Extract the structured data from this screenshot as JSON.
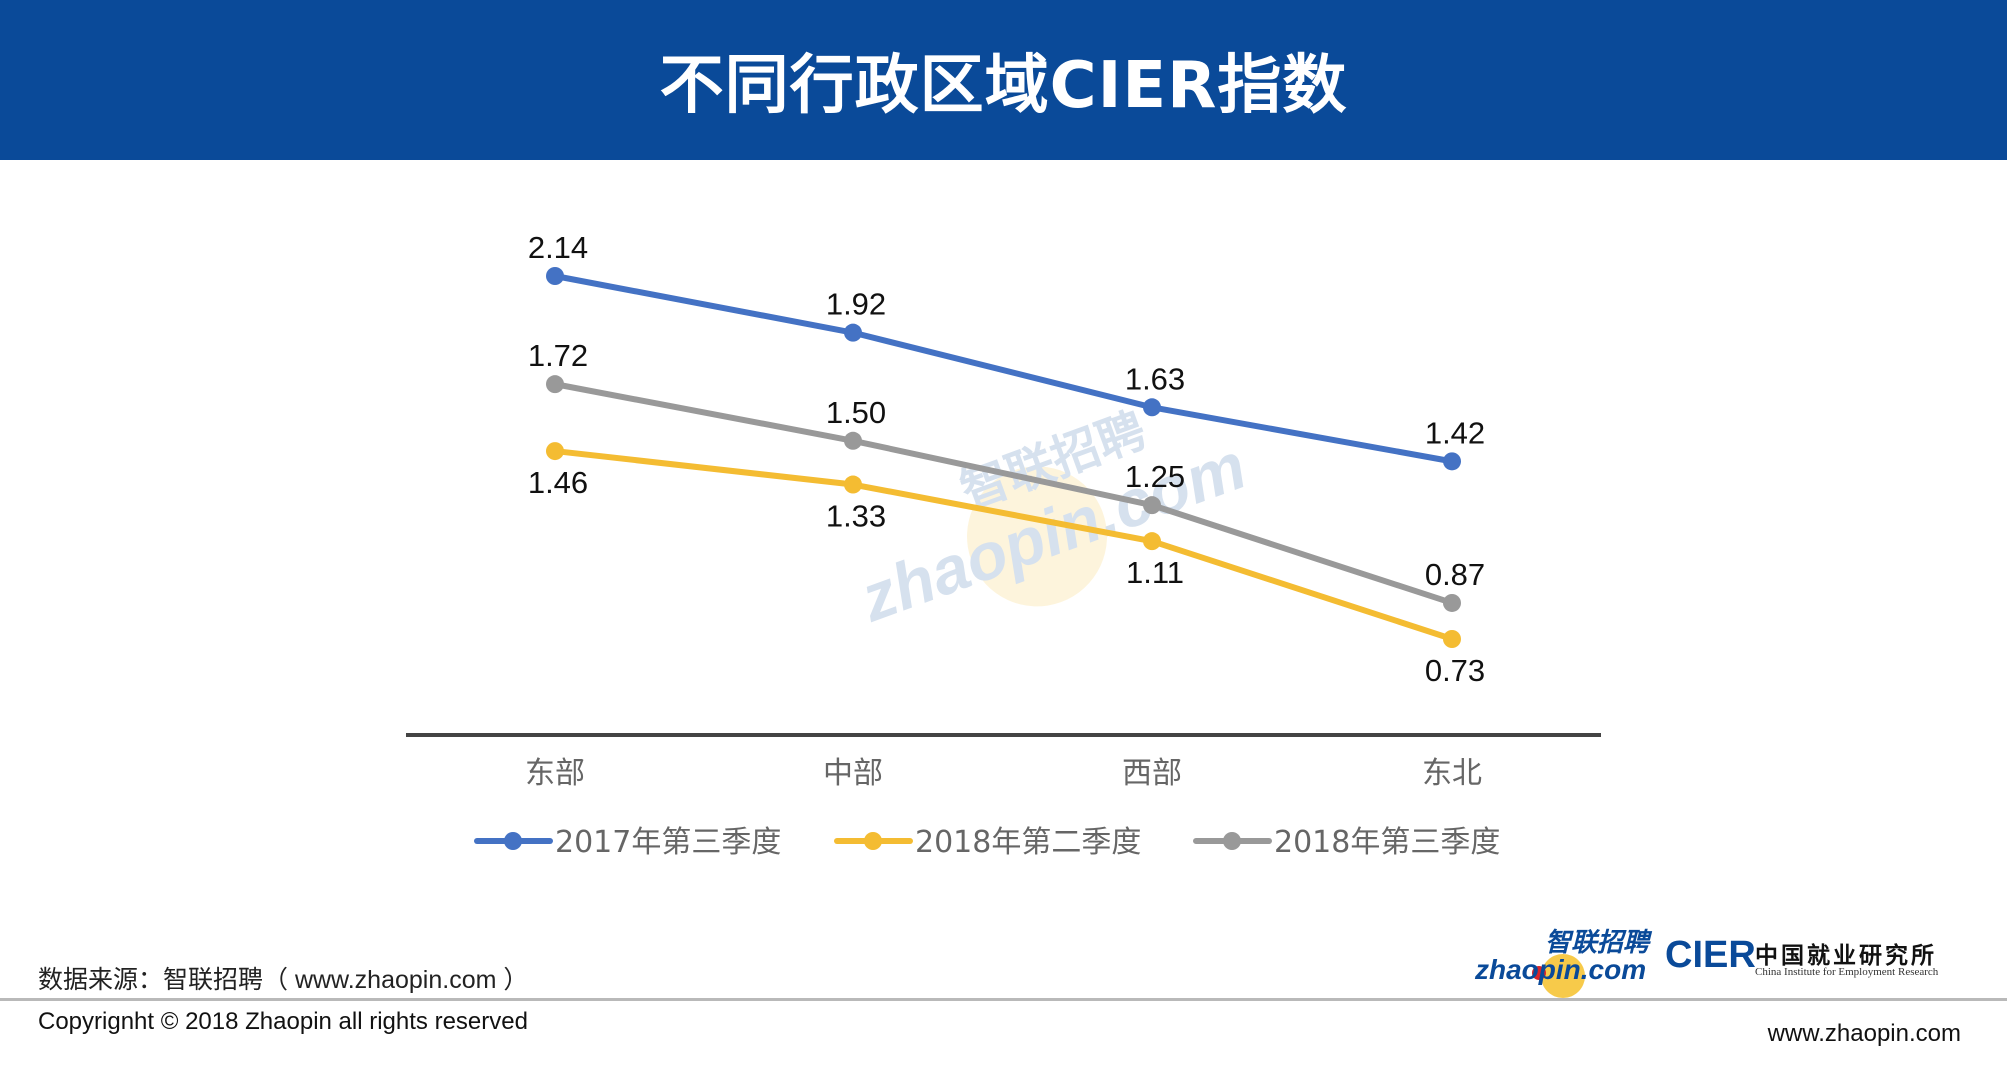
{
  "header": {
    "title": "不同行政区域CIER指数",
    "background": "#0a4a99"
  },
  "chart_data": {
    "type": "line",
    "title": "",
    "xlabel": "",
    "ylabel": "",
    "categories": [
      "东部",
      "中部",
      "西部",
      "东北"
    ],
    "ylim": [
      0.4,
      2.3
    ],
    "grid": false,
    "legend_position": "bottom",
    "series": [
      {
        "name": "2017年第三季度",
        "values": [
          2.14,
          1.92,
          1.63,
          1.42
        ],
        "labels": [
          "2.14",
          "1.92",
          "1.63",
          "1.42"
        ],
        "color": "#4472c4",
        "label_position": [
          "above",
          "above",
          "above",
          "above"
        ]
      },
      {
        "name": "2018年第二季度",
        "values": [
          1.46,
          1.33,
          1.11,
          0.73
        ],
        "labels": [
          "1.46",
          "1.33",
          "1.11",
          "0.73"
        ],
        "color": "#f4bc32",
        "label_position": [
          "below",
          "below",
          "below",
          "below"
        ]
      },
      {
        "name": "2018年第三季度",
        "values": [
          1.72,
          1.5,
          1.25,
          0.87
        ],
        "labels": [
          "1.72",
          "1.50",
          "1.25",
          "0.87"
        ],
        "color": "#999999",
        "label_position": [
          "above",
          "above",
          "above",
          "above"
        ]
      }
    ]
  },
  "footer": {
    "source": "数据来源：智联招聘（ www.zhaopin.com ）",
    "copyright": "Copyrignht © 2018 Zhaopin all rights reserved",
    "site": "www.zhaopin.com"
  },
  "logos": {
    "zhaopin_cn": "智联招聘",
    "zhaopin_en": "zhaopin.com",
    "cier_word": "CIER",
    "cier_cn": "中国就业研究所",
    "cier_en": "China Institute for Employment Research"
  },
  "watermark": {
    "cn": "智联招聘",
    "en": "zhaopin.com"
  }
}
